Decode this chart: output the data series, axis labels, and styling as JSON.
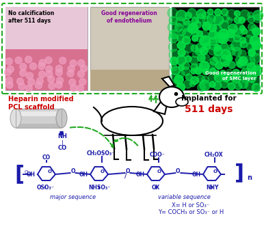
{
  "background_color": "#ffffff",
  "border_color": "#22aa22",
  "panel1_label": "No calcification\nafter 511 days",
  "panel1_label_color": "#000000",
  "panel2_label": "Good regeneration\nof endothelium",
  "panel2_label_color": "#880099",
  "panel3_label": "Good regeneration\nof SMC layer",
  "panel3_label_color": "#ffffff",
  "heparin_label": "Heparin modified\nPCL scaffold",
  "heparin_color": "#cc0000",
  "implanted_label": "Implanted for",
  "implanted_color": "#000000",
  "days_label": "511 days",
  "days_color": "#cc0000",
  "chem_label_major": "major sequence",
  "chem_label_variable": "variable sequence",
  "chem_color": "#1a1aaa",
  "chem_x_label": "X= H or SO₃⁻",
  "chem_y_label": "Y= COCH₃ or SO₃⁻ or H",
  "arrow_color": "#22aa22",
  "figsize": [
    3.86,
    3.35
  ],
  "dpi": 100
}
